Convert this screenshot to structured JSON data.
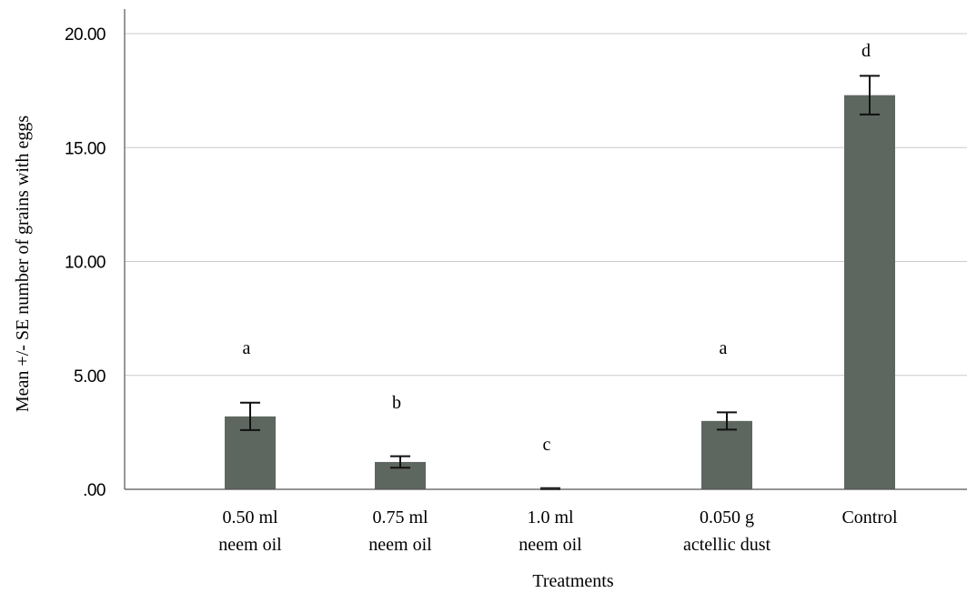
{
  "chart_data": {
    "type": "bar",
    "categories": [
      [
        "0.50 ml",
        "neem oil"
      ],
      [
        "0.75 ml",
        "neem oil"
      ],
      [
        "1.0 ml",
        "neem oil"
      ],
      [
        "0.050 g",
        "actellic dust"
      ],
      [
        "Control"
      ]
    ],
    "values": [
      3.2,
      1.2,
      0.0,
      3.0,
      17.3
    ],
    "errors": [
      0.6,
      0.25,
      0.05,
      0.38,
      0.85
    ],
    "significance_letters": [
      "a",
      "b",
      "c",
      "a",
      "d"
    ],
    "xlabel": "Treatments",
    "ylabel": "Mean +/- SE number of grains with eggs",
    "ylim": [
      0,
      20
    ],
    "yticks": [
      0,
      5,
      10,
      15,
      20
    ],
    "ytick_labels": [
      ".00",
      "5.00",
      "10.00",
      "15.00",
      "20.00"
    ],
    "grid": "horizontal",
    "colors": {
      "bar": "#5e6660",
      "grid": "#cccccc",
      "axis": "#555555",
      "error": "#111111"
    }
  }
}
